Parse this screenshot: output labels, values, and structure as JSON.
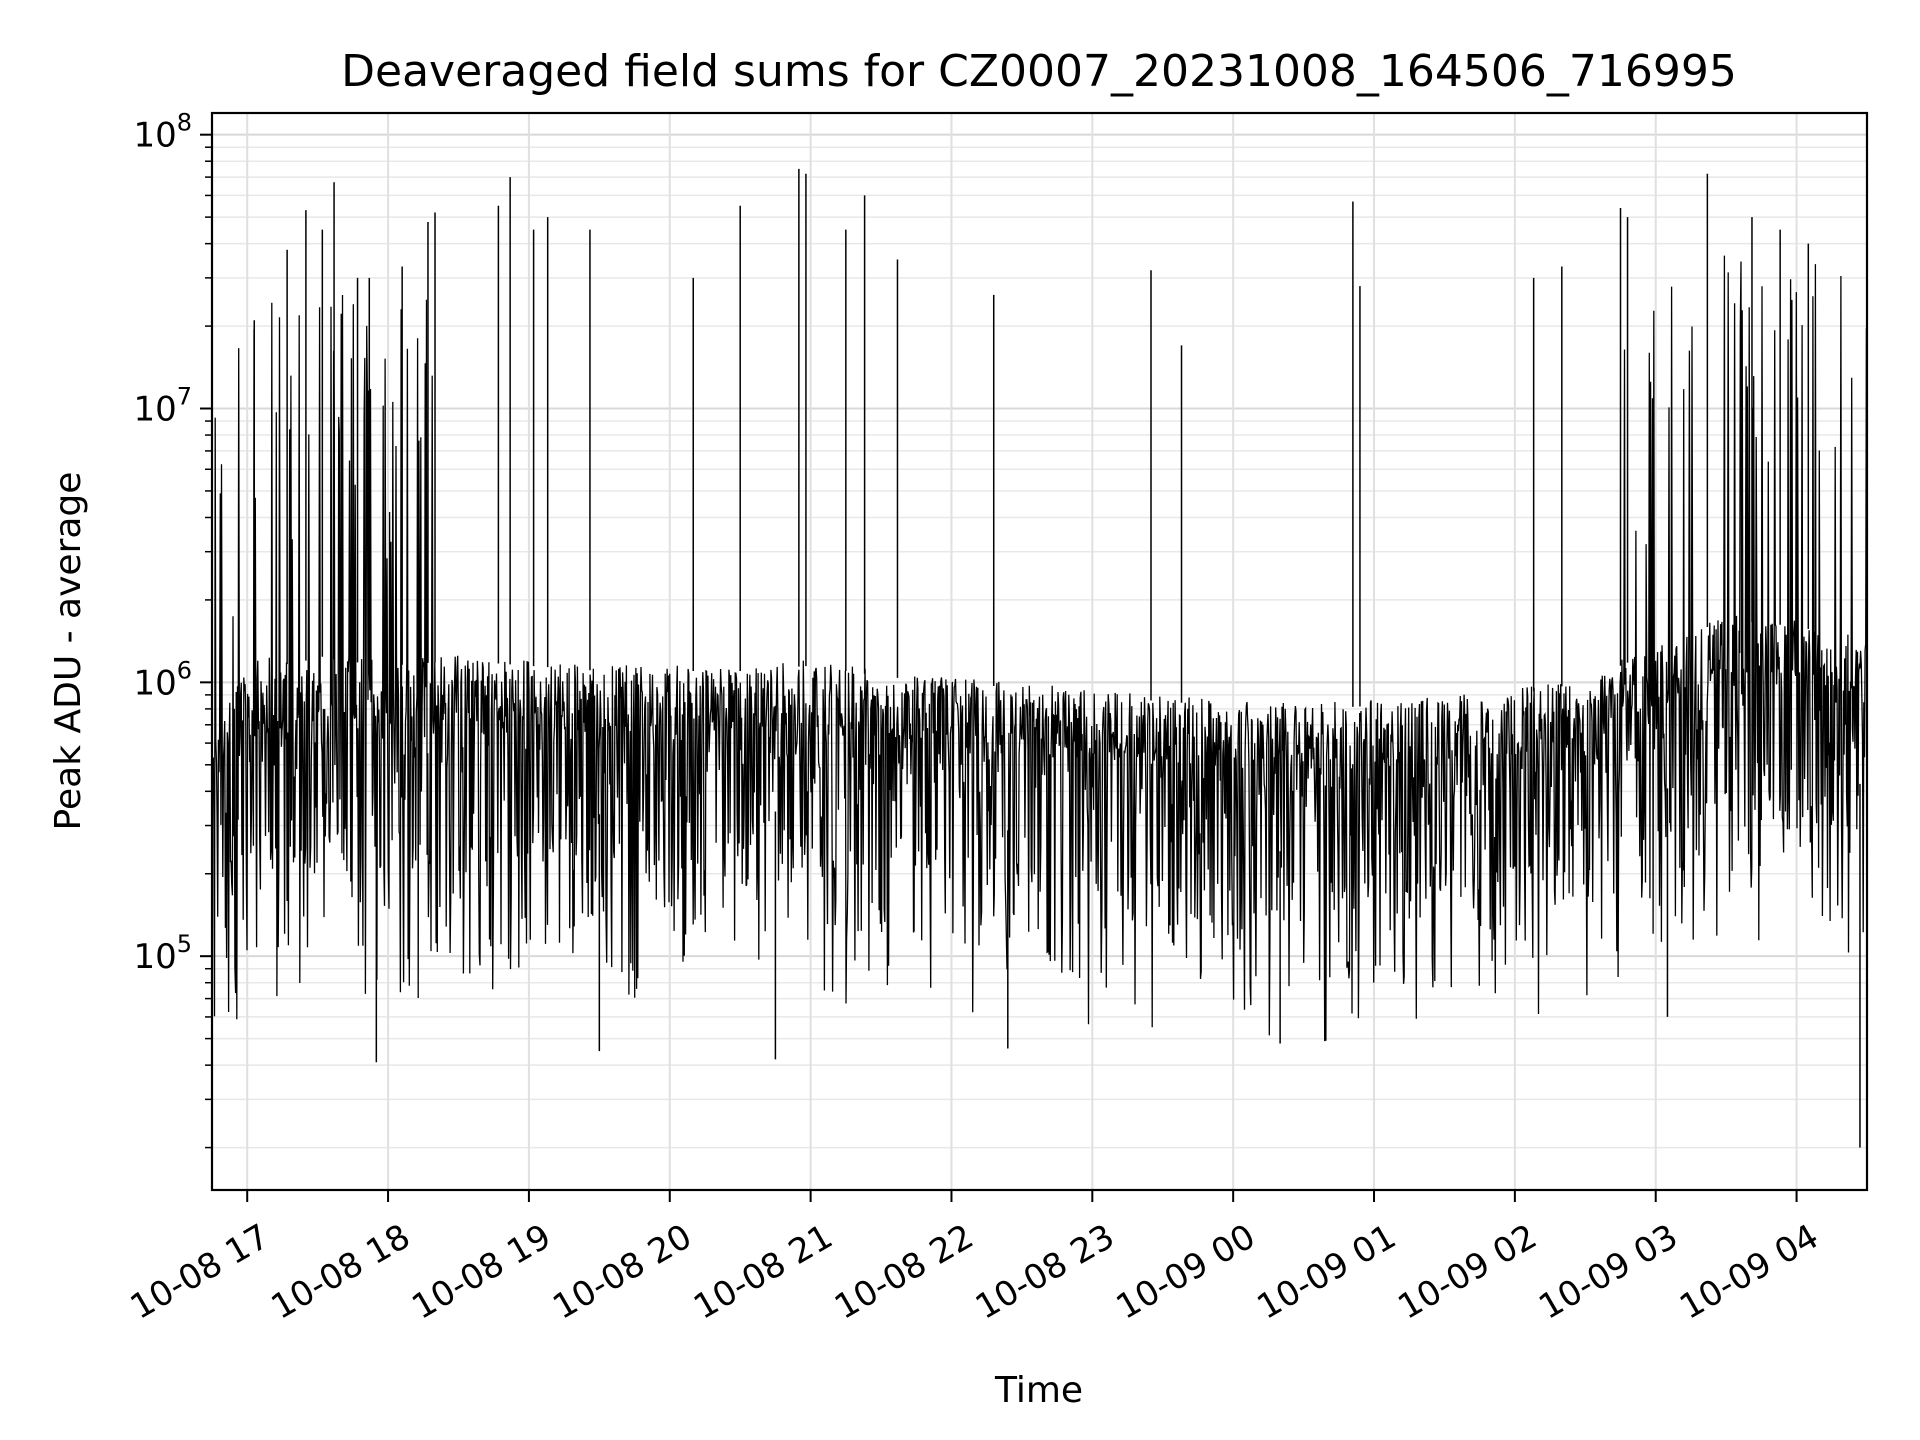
{
  "chart_data": {
    "type": "line",
    "title": "Deaveraged field sums for CZ0007_20231008_164506_716995",
    "xlabel": "Time",
    "ylabel": "Peak ADU - average",
    "yscale": "log",
    "ylim": [
      14000,
      120000000
    ],
    "xlim": [
      "2023-10-08 16:45",
      "2023-10-09 04:30"
    ],
    "grid": true,
    "line_color": "#000000",
    "x_ticks": [
      {
        "t": "2023-10-08 17:00",
        "label": "10-08 17"
      },
      {
        "t": "2023-10-08 18:00",
        "label": "10-08 18"
      },
      {
        "t": "2023-10-08 19:00",
        "label": "10-08 19"
      },
      {
        "t": "2023-10-08 20:00",
        "label": "10-08 20"
      },
      {
        "t": "2023-10-08 21:00",
        "label": "10-08 21"
      },
      {
        "t": "2023-10-08 22:00",
        "label": "10-08 22"
      },
      {
        "t": "2023-10-08 23:00",
        "label": "10-08 23"
      },
      {
        "t": "2023-10-09 00:00",
        "label": "10-09 00"
      },
      {
        "t": "2023-10-09 01:00",
        "label": "10-09 01"
      },
      {
        "t": "2023-10-09 02:00",
        "label": "10-09 02"
      },
      {
        "t": "2023-10-09 03:00",
        "label": "10-09 03"
      },
      {
        "t": "2023-10-09 04:00",
        "label": "10-09 04"
      }
    ],
    "y_ticks": [
      {
        "value": 100000,
        "base": "10",
        "exp": "5"
      },
      {
        "value": 1000000,
        "base": "10",
        "exp": "6"
      },
      {
        "value": 10000000,
        "base": "10",
        "exp": "7"
      },
      {
        "value": 100000000,
        "base": "10",
        "exp": "8"
      }
    ],
    "series": [
      {
        "points": [
          [
            "2023-10-08 16:45",
            550000
          ],
          [
            "2023-10-08 16:50",
            700000
          ],
          [
            "2023-10-08 16:55",
            900000
          ],
          [
            "2023-10-08 17:00",
            1100000
          ],
          [
            "2023-10-08 17:10",
            1200000
          ],
          [
            "2023-10-08 17:20",
            1150000
          ],
          [
            "2023-10-08 17:30",
            1250000
          ],
          [
            "2023-10-08 17:40",
            1200000
          ],
          [
            "2023-10-08 18:00",
            1150000
          ],
          [
            "2023-10-08 18:30",
            1200000
          ],
          [
            "2023-10-08 19:00",
            1150000
          ],
          [
            "2023-10-08 19:30",
            1100000
          ],
          [
            "2023-10-08 20:00",
            1100000
          ],
          [
            "2023-10-08 20:30",
            1100000
          ],
          [
            "2023-10-08 21:00",
            1150000
          ],
          [
            "2023-10-08 21:30",
            1050000
          ],
          [
            "2023-10-08 22:00",
            1000000
          ],
          [
            "2023-10-08 22:30",
            950000
          ],
          [
            "2023-10-08 23:00",
            900000
          ],
          [
            "2023-10-08 23:30",
            850000
          ],
          [
            "2023-10-09 00:00",
            820000
          ],
          [
            "2023-10-09 00:30",
            800000
          ],
          [
            "2023-10-09 01:00",
            820000
          ],
          [
            "2023-10-09 01:30",
            850000
          ],
          [
            "2023-10-09 02:00",
            900000
          ],
          [
            "2023-10-09 02:30",
            1000000
          ],
          [
            "2023-10-09 03:00",
            1300000
          ],
          [
            "2023-10-09 03:30",
            1700000
          ],
          [
            "2023-10-09 04:00",
            1600000
          ],
          [
            "2023-10-09 04:30",
            1400000
          ]
        ],
        "spikes": [
          [
            "2023-10-08 17:03",
            21000000
          ],
          [
            "2023-10-08 17:17",
            38000000
          ],
          [
            "2023-10-08 17:25",
            53000000
          ],
          [
            "2023-10-08 17:32",
            45000000
          ],
          [
            "2023-10-08 17:37",
            67000000
          ],
          [
            "2023-10-08 17:47",
            30000000
          ],
          [
            "2023-10-08 17:52",
            30000000
          ],
          [
            "2023-10-08 18:06",
            33000000
          ],
          [
            "2023-10-08 18:17",
            48000000
          ],
          [
            "2023-10-08 18:20",
            52000000
          ],
          [
            "2023-10-08 18:47",
            55000000
          ],
          [
            "2023-10-08 18:52",
            70000000
          ],
          [
            "2023-10-08 19:02",
            45000000
          ],
          [
            "2023-10-08 19:08",
            50000000
          ],
          [
            "2023-10-08 19:26",
            45000000
          ],
          [
            "2023-10-08 20:10",
            30000000
          ],
          [
            "2023-10-08 20:30",
            55000000
          ],
          [
            "2023-10-08 20:55",
            75000000
          ],
          [
            "2023-10-08 20:58",
            72000000
          ],
          [
            "2023-10-08 21:15",
            45000000
          ],
          [
            "2023-10-08 21:23",
            60000000
          ],
          [
            "2023-10-08 21:37",
            35000000
          ],
          [
            "2023-10-08 22:18",
            26000000
          ],
          [
            "2023-10-08 23:25",
            32000000
          ],
          [
            "2023-10-08 23:38",
            17000000
          ],
          [
            "2023-10-09 00:51",
            57000000
          ],
          [
            "2023-10-09 00:54",
            28000000
          ],
          [
            "2023-10-09 02:08",
            30000000
          ],
          [
            "2023-10-09 02:20",
            33000000
          ],
          [
            "2023-10-09 02:45",
            54000000
          ],
          [
            "2023-10-09 02:48",
            50000000
          ],
          [
            "2023-10-09 03:22",
            72000000
          ],
          [
            "2023-10-09 03:41",
            50000000
          ],
          [
            "2023-10-09 03:53",
            45000000
          ],
          [
            "2023-10-09 04:05",
            40000000
          ]
        ],
        "dips": [
          [
            "2023-10-08 17:55",
            41000.0
          ],
          [
            "2023-10-08 19:30",
            45000
          ],
          [
            "2023-10-08 20:45",
            42000
          ],
          [
            "2023-10-08 22:24",
            46000
          ],
          [
            "2023-10-09 00:20",
            48000
          ],
          [
            "2023-10-09 03:05",
            60000
          ],
          [
            "2023-10-09 04:27",
            20000
          ]
        ]
      }
    ]
  }
}
